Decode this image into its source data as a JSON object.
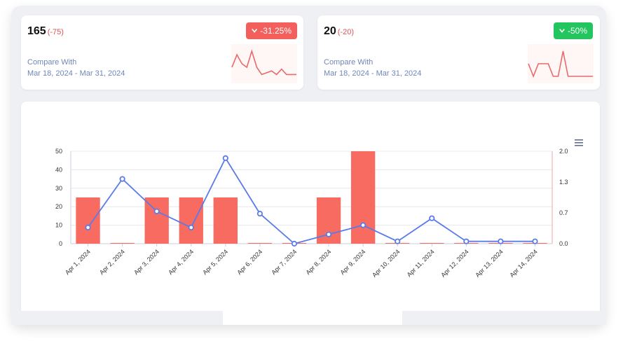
{
  "kpi_cards": [
    {
      "value": "165",
      "delta": "(-75)",
      "badge": "-31.25%",
      "badge_color": "#f25f5c",
      "badge_icon": "chevron-down-icon",
      "compare_label": "Compare With",
      "compare_range": "Mar 18, 2024 - Mar 31, 2024",
      "sparkline": [
        0.5,
        1.2,
        0.7,
        0.5,
        1.4,
        0.5,
        0.1,
        0.2,
        0.3,
        0.1,
        0.4,
        0.1,
        0.1,
        0.1
      ]
    },
    {
      "value": "20",
      "delta": "(-20)",
      "badge": "-50%",
      "badge_color": "#22c55e",
      "badge_icon": "chevron-down-icon",
      "compare_label": "Compare With",
      "compare_range": "Mar 18, 2024 - Mar 31, 2024",
      "sparkline": [
        0.3,
        0,
        0.3,
        0.3,
        0.3,
        0,
        0,
        0.6,
        0,
        0,
        0,
        0,
        0,
        0
      ]
    }
  ],
  "menu_icon": "hamburger-menu-icon",
  "chart_data": {
    "type": "bar",
    "categories": [
      "Apr 1, 2024",
      "Apr 2, 2024",
      "Apr 3, 2024",
      "Apr 4, 2024",
      "Apr 5, 2024",
      "Apr 6, 2024",
      "Apr 7, 2024",
      "Apr 8, 2024",
      "Apr 9, 2024",
      "Apr 10, 2024",
      "Apr 11, 2024",
      "Apr 12, 2024",
      "Apr 13, 2024",
      "Apr 14, 2024"
    ],
    "series": [
      {
        "type": "bar",
        "axis": "left",
        "color": "#f76b61",
        "values": [
          25,
          0,
          25,
          25,
          25,
          0,
          0,
          25,
          50,
          0,
          0,
          0,
          0,
          0
        ]
      },
      {
        "type": "line",
        "axis": "right",
        "color": "#5b7be8",
        "values": [
          0.35,
          1.4,
          0.7,
          0.35,
          1.85,
          0.65,
          0,
          0.2,
          0.4,
          0.05,
          0.55,
          0.05,
          0.05,
          0.05
        ]
      }
    ],
    "y_left": {
      "ylim": [
        0,
        50
      ],
      "ticks": [
        "0",
        "10",
        "20",
        "30",
        "40",
        "50"
      ]
    },
    "y_right": {
      "ylim": [
        0,
        2.0
      ],
      "ticks": [
        "0.0",
        "0.7",
        "1.3",
        "2.0"
      ],
      "tick_values": [
        0,
        0.667,
        1.333,
        2.0
      ]
    },
    "grid": true,
    "xlabel": "",
    "ylabel": ""
  }
}
